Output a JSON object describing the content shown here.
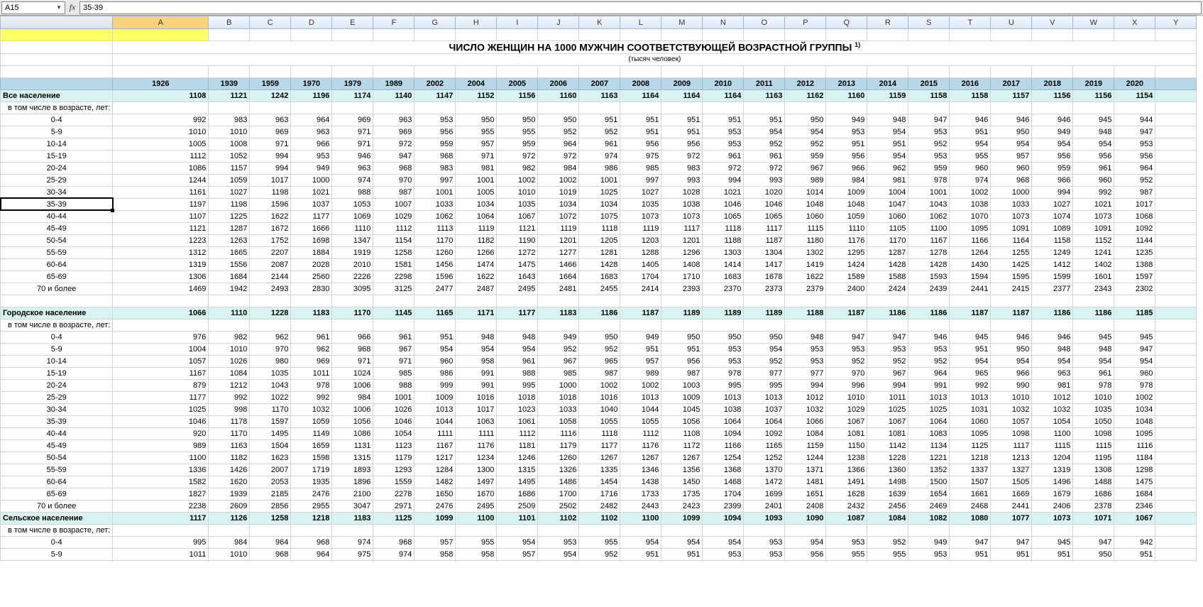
{
  "formula_bar": {
    "cell_ref": "A15",
    "fx_label": "fx",
    "formula": "35-39"
  },
  "columns": [
    "",
    "A",
    "B",
    "C",
    "D",
    "E",
    "F",
    "G",
    "H",
    "I",
    "J",
    "K",
    "L",
    "M",
    "N",
    "O",
    "P",
    "Q",
    "R",
    "S",
    "T",
    "U",
    "V",
    "W",
    "X",
    "Y"
  ],
  "selected_col": "A",
  "title": "ЧИСЛО ЖЕНЩИН НА 1000 МУЖЧИН СООТВЕТСТВУЮЩЕЙ ВОЗРАСТНОЙ ГРУППЫ",
  "title_sup": "1)",
  "subtitle": "(тысяч человек)",
  "years": [
    "1926",
    "1939",
    "1959",
    "1970",
    "1979",
    "1989",
    "2002",
    "2004",
    "2005",
    "2006",
    "2007",
    "2008",
    "2009",
    "2010",
    "2011",
    "2012",
    "2013",
    "2014",
    "2015",
    "2016",
    "2017",
    "2018",
    "2019",
    "2020"
  ],
  "sections": [
    {
      "name": "Все население",
      "sub": "в том числе в возрасте, лет:",
      "totals": [
        "1108",
        "1121",
        "1242",
        "1196",
        "1174",
        "1140",
        "1147",
        "1152",
        "1156",
        "1160",
        "1163",
        "1164",
        "1164",
        "1164",
        "1163",
        "1162",
        "1160",
        "1159",
        "1158",
        "1158",
        "1157",
        "1156",
        "1156",
        "1154"
      ],
      "rows": [
        {
          "label": "0-4",
          "v": [
            "992",
            "983",
            "963",
            "964",
            "969",
            "963",
            "953",
            "950",
            "950",
            "950",
            "951",
            "951",
            "951",
            "951",
            "951",
            "950",
            "949",
            "948",
            "947",
            "946",
            "946",
            "946",
            "945",
            "944"
          ]
        },
        {
          "label": "5-9",
          "v": [
            "1010",
            "1010",
            "969",
            "963",
            "971",
            "969",
            "956",
            "955",
            "955",
            "952",
            "952",
            "951",
            "951",
            "953",
            "954",
            "954",
            "953",
            "954",
            "953",
            "951",
            "950",
            "949",
            "948",
            "947"
          ]
        },
        {
          "label": "10-14",
          "v": [
            "1005",
            "1008",
            "971",
            "966",
            "971",
            "972",
            "959",
            "957",
            "959",
            "964",
            "961",
            "956",
            "956",
            "953",
            "952",
            "952",
            "951",
            "951",
            "952",
            "954",
            "954",
            "954",
            "954",
            "953"
          ]
        },
        {
          "label": "15-19",
          "v": [
            "1112",
            "1052",
            "994",
            "953",
            "946",
            "947",
            "968",
            "971",
            "972",
            "972",
            "974",
            "975",
            "972",
            "961",
            "961",
            "959",
            "956",
            "954",
            "953",
            "955",
            "957",
            "956",
            "956",
            "956"
          ]
        },
        {
          "label": "20-24",
          "v": [
            "1086",
            "1157",
            "994",
            "949",
            "963",
            "968",
            "983",
            "981",
            "982",
            "984",
            "986",
            "985",
            "983",
            "972",
            "972",
            "967",
            "966",
            "962",
            "959",
            "960",
            "960",
            "959",
            "961",
            "964"
          ]
        },
        {
          "label": "25-29",
          "v": [
            "1244",
            "1059",
            "1017",
            "1000",
            "974",
            "970",
            "997",
            "1001",
            "1002",
            "1002",
            "1001",
            "997",
            "993",
            "994",
            "993",
            "989",
            "984",
            "981",
            "978",
            "974",
            "968",
            "966",
            "960",
            "952"
          ]
        },
        {
          "label": "30-34",
          "v": [
            "1161",
            "1027",
            "1198",
            "1021",
            "988",
            "987",
            "1001",
            "1005",
            "1010",
            "1019",
            "1025",
            "1027",
            "1028",
            "1021",
            "1020",
            "1014",
            "1009",
            "1004",
            "1001",
            "1002",
            "1000",
            "994",
            "992",
            "987"
          ]
        },
        {
          "label": "35-39",
          "v": [
            "1197",
            "1198",
            "1596",
            "1037",
            "1053",
            "1007",
            "1033",
            "1034",
            "1035",
            "1034",
            "1034",
            "1035",
            "1038",
            "1046",
            "1046",
            "1048",
            "1048",
            "1047",
            "1043",
            "1038",
            "1033",
            "1027",
            "1021",
            "1017"
          ],
          "active": true
        },
        {
          "label": "40-44",
          "v": [
            "1107",
            "1225",
            "1622",
            "1177",
            "1069",
            "1029",
            "1062",
            "1064",
            "1067",
            "1072",
            "1075",
            "1073",
            "1073",
            "1065",
            "1065",
            "1060",
            "1059",
            "1060",
            "1062",
            "1070",
            "1073",
            "1074",
            "1073",
            "1068"
          ]
        },
        {
          "label": "45-49",
          "v": [
            "1121",
            "1287",
            "1672",
            "1666",
            "1110",
            "1112",
            "1113",
            "1119",
            "1121",
            "1119",
            "1118",
            "1119",
            "1117",
            "1118",
            "1117",
            "1115",
            "1110",
            "1105",
            "1100",
            "1095",
            "1091",
            "1089",
            "1091",
            "1092"
          ]
        },
        {
          "label": "50-54",
          "v": [
            "1223",
            "1263",
            "1752",
            "1698",
            "1347",
            "1154",
            "1170",
            "1182",
            "1190",
            "1201",
            "1205",
            "1203",
            "1201",
            "1188",
            "1187",
            "1180",
            "1176",
            "1170",
            "1167",
            "1166",
            "1164",
            "1158",
            "1152",
            "1144"
          ]
        },
        {
          "label": "55-59",
          "v": [
            "1312",
            "1665",
            "2207",
            "1884",
            "1919",
            "1258",
            "1260",
            "1266",
            "1272",
            "1277",
            "1281",
            "1288",
            "1296",
            "1303",
            "1304",
            "1302",
            "1295",
            "1287",
            "1278",
            "1264",
            "1255",
            "1249",
            "1241",
            "1235"
          ]
        },
        {
          "label": "60-64",
          "v": [
            "1319",
            "1556",
            "2087",
            "2028",
            "2010",
            "1581",
            "1456",
            "1474",
            "1475",
            "1466",
            "1428",
            "1405",
            "1408",
            "1414",
            "1417",
            "1419",
            "1424",
            "1428",
            "1428",
            "1430",
            "1425",
            "1412",
            "1402",
            "1388"
          ]
        },
        {
          "label": "65-69",
          "v": [
            "1306",
            "1684",
            "2144",
            "2560",
            "2226",
            "2298",
            "1596",
            "1622",
            "1643",
            "1664",
            "1683",
            "1704",
            "1710",
            "1683",
            "1678",
            "1622",
            "1589",
            "1588",
            "1593",
            "1594",
            "1595",
            "1599",
            "1601",
            "1597"
          ]
        },
        {
          "label": "70 и более",
          "v": [
            "1469",
            "1942",
            "2493",
            "2830",
            "3095",
            "3125",
            "2477",
            "2487",
            "2495",
            "2481",
            "2455",
            "2414",
            "2393",
            "2370",
            "2373",
            "2379",
            "2400",
            "2424",
            "2439",
            "2441",
            "2415",
            "2377",
            "2343",
            "2302"
          ]
        }
      ]
    },
    {
      "name": "Городское население",
      "sub": "в том числе в возрасте, лет:",
      "totals": [
        "1066",
        "1110",
        "1228",
        "1183",
        "1170",
        "1145",
        "1165",
        "1171",
        "1177",
        "1183",
        "1186",
        "1187",
        "1189",
        "1189",
        "1189",
        "1188",
        "1187",
        "1186",
        "1186",
        "1187",
        "1187",
        "1186",
        "1186",
        "1185"
      ],
      "rows": [
        {
          "label": "0-4",
          "v": [
            "976",
            "982",
            "962",
            "961",
            "966",
            "961",
            "951",
            "948",
            "948",
            "949",
            "950",
            "949",
            "950",
            "950",
            "950",
            "948",
            "947",
            "947",
            "946",
            "945",
            "946",
            "946",
            "945",
            "945"
          ]
        },
        {
          "label": "5-9",
          "v": [
            "1004",
            "1010",
            "970",
            "962",
            "968",
            "967",
            "954",
            "954",
            "954",
            "952",
            "952",
            "951",
            "951",
            "953",
            "954",
            "953",
            "953",
            "953",
            "953",
            "951",
            "950",
            "948",
            "948",
            "947"
          ]
        },
        {
          "label": "10-14",
          "v": [
            "1057",
            "1026",
            "980",
            "969",
            "971",
            "971",
            "960",
            "958",
            "961",
            "967",
            "965",
            "957",
            "956",
            "953",
            "952",
            "953",
            "952",
            "952",
            "952",
            "954",
            "954",
            "954",
            "954",
            "954"
          ]
        },
        {
          "label": "15-19",
          "v": [
            "1167",
            "1084",
            "1035",
            "1011",
            "1024",
            "985",
            "986",
            "991",
            "988",
            "985",
            "987",
            "989",
            "987",
            "978",
            "977",
            "977",
            "970",
            "967",
            "964",
            "965",
            "966",
            "963",
            "961",
            "960"
          ]
        },
        {
          "label": "20-24",
          "v": [
            "879",
            "1212",
            "1043",
            "978",
            "1006",
            "988",
            "999",
            "991",
            "995",
            "1000",
            "1002",
            "1002",
            "1003",
            "995",
            "995",
            "994",
            "996",
            "994",
            "991",
            "992",
            "990",
            "981",
            "978",
            "978"
          ]
        },
        {
          "label": "25-29",
          "v": [
            "1177",
            "992",
            "1022",
            "992",
            "984",
            "1001",
            "1009",
            "1016",
            "1018",
            "1018",
            "1016",
            "1013",
            "1009",
            "1013",
            "1013",
            "1012",
            "1010",
            "1011",
            "1013",
            "1013",
            "1010",
            "1012",
            "1010",
            "1002"
          ]
        },
        {
          "label": "30-34",
          "v": [
            "1025",
            "998",
            "1170",
            "1032",
            "1006",
            "1026",
            "1013",
            "1017",
            "1023",
            "1033",
            "1040",
            "1044",
            "1045",
            "1038",
            "1037",
            "1032",
            "1029",
            "1025",
            "1025",
            "1031",
            "1032",
            "1032",
            "1035",
            "1034"
          ]
        },
        {
          "label": "35-39",
          "v": [
            "1046",
            "1178",
            "1597",
            "1059",
            "1056",
            "1046",
            "1044",
            "1063",
            "1061",
            "1058",
            "1055",
            "1055",
            "1056",
            "1064",
            "1064",
            "1066",
            "1067",
            "1067",
            "1064",
            "1060",
            "1057",
            "1054",
            "1050",
            "1048"
          ]
        },
        {
          "label": "40-44",
          "v": [
            "920",
            "1170",
            "1495",
            "1149",
            "1086",
            "1054",
            "1111",
            "1111",
            "1112",
            "1116",
            "1118",
            "1112",
            "1108",
            "1094",
            "1092",
            "1084",
            "1081",
            "1081",
            "1083",
            "1095",
            "1098",
            "1100",
            "1098",
            "1095"
          ]
        },
        {
          "label": "45-49",
          "v": [
            "989",
            "1163",
            "1504",
            "1659",
            "1131",
            "1123",
            "1167",
            "1176",
            "1181",
            "1179",
            "1177",
            "1176",
            "1172",
            "1166",
            "1165",
            "1159",
            "1150",
            "1142",
            "1134",
            "1125",
            "1117",
            "1115",
            "1115",
            "1116"
          ]
        },
        {
          "label": "50-54",
          "v": [
            "1100",
            "1182",
            "1623",
            "1598",
            "1315",
            "1179",
            "1217",
            "1234",
            "1246",
            "1260",
            "1267",
            "1267",
            "1267",
            "1254",
            "1252",
            "1244",
            "1238",
            "1228",
            "1221",
            "1218",
            "1213",
            "1204",
            "1195",
            "1184"
          ]
        },
        {
          "label": "55-59",
          "v": [
            "1336",
            "1426",
            "2007",
            "1719",
            "1893",
            "1293",
            "1284",
            "1300",
            "1315",
            "1326",
            "1335",
            "1346",
            "1356",
            "1368",
            "1370",
            "1371",
            "1366",
            "1360",
            "1352",
            "1337",
            "1327",
            "1319",
            "1308",
            "1298"
          ]
        },
        {
          "label": "60-64",
          "v": [
            "1582",
            "1620",
            "2053",
            "1935",
            "1896",
            "1559",
            "1482",
            "1497",
            "1495",
            "1486",
            "1454",
            "1438",
            "1450",
            "1468",
            "1472",
            "1481",
            "1491",
            "1498",
            "1500",
            "1507",
            "1505",
            "1496",
            "1488",
            "1475"
          ]
        },
        {
          "label": "65-69",
          "v": [
            "1827",
            "1939",
            "2185",
            "2476",
            "2100",
            "2278",
            "1650",
            "1670",
            "1686",
            "1700",
            "1716",
            "1733",
            "1735",
            "1704",
            "1699",
            "1651",
            "1628",
            "1639",
            "1654",
            "1661",
            "1669",
            "1679",
            "1686",
            "1684"
          ]
        },
        {
          "label": "70 и более",
          "v": [
            "2238",
            "2609",
            "2856",
            "2955",
            "3047",
            "2971",
            "2476",
            "2495",
            "2509",
            "2502",
            "2482",
            "2443",
            "2423",
            "2399",
            "2401",
            "2408",
            "2432",
            "2456",
            "2469",
            "2468",
            "2441",
            "2406",
            "2378",
            "2346"
          ]
        }
      ]
    },
    {
      "name": "Сельское население",
      "sub": "в том числе в возрасте, лет:",
      "totals": [
        "1117",
        "1126",
        "1258",
        "1218",
        "1183",
        "1125",
        "1099",
        "1100",
        "1101",
        "1102",
        "1102",
        "1100",
        "1099",
        "1094",
        "1093",
        "1090",
        "1087",
        "1084",
        "1082",
        "1080",
        "1077",
        "1073",
        "1071",
        "1067"
      ],
      "rows": [
        {
          "label": "0-4",
          "v": [
            "995",
            "984",
            "964",
            "968",
            "974",
            "968",
            "957",
            "955",
            "954",
            "953",
            "955",
            "954",
            "954",
            "954",
            "953",
            "954",
            "953",
            "952",
            "949",
            "947",
            "947",
            "945",
            "947",
            "942"
          ]
        },
        {
          "label": "5-9",
          "v": [
            "1011",
            "1010",
            "968",
            "964",
            "975",
            "974",
            "958",
            "958",
            "957",
            "954",
            "952",
            "951",
            "951",
            "953",
            "953",
            "956",
            "955",
            "955",
            "953",
            "951",
            "951",
            "951",
            "950",
            "951"
          ]
        }
      ]
    }
  ]
}
